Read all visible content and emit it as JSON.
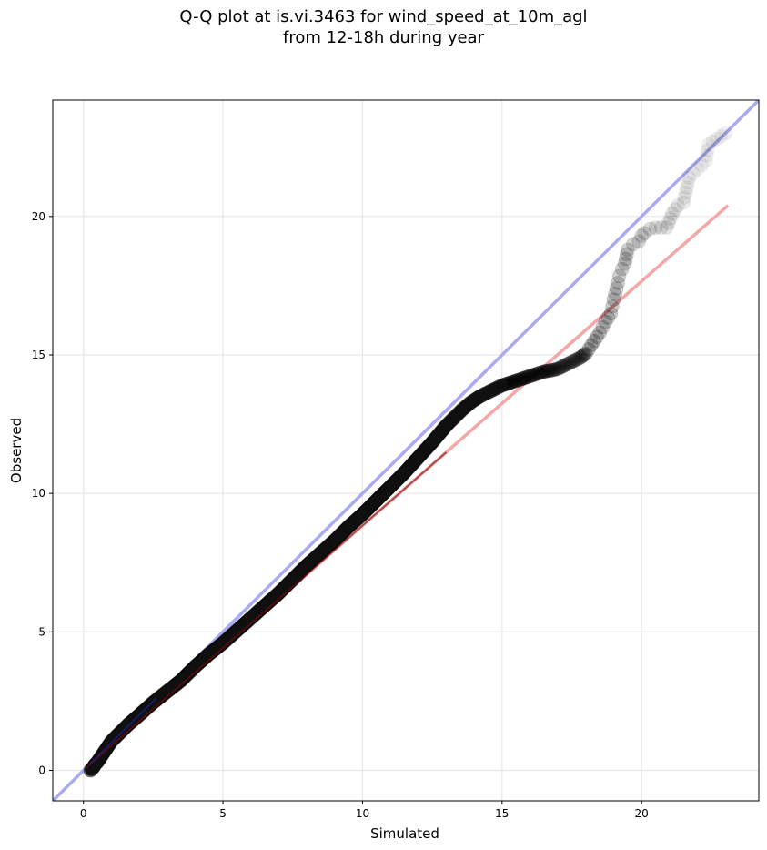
{
  "chart_data": {
    "type": "scatter",
    "title_line1": "Q-Q plot at is.vi.3463 for wind_speed_at_10m_agl",
    "title_line2": "from 12-18h during year",
    "xlabel": "Simulated",
    "ylabel": "Observed",
    "xlim": [
      -1.1,
      24.2
    ],
    "ylim": [
      -1.1,
      24.2
    ],
    "xticks": [
      0,
      5,
      10,
      15,
      20
    ],
    "yticks": [
      0,
      5,
      10,
      15,
      20
    ],
    "grid": true,
    "reference_line": {
      "color": "#aaaaf2",
      "x": [
        -1.1,
        24.2
      ],
      "y": [
        -1.1,
        24.2
      ]
    },
    "fit_line": {
      "color": "#f5a7a7",
      "x": [
        0.1,
        23.1
      ],
      "y": [
        0.1,
        20.4
      ]
    },
    "quantile_points": {
      "color": "#000000",
      "x": [
        0.25,
        0.3,
        0.35,
        0.4,
        0.5,
        0.6,
        0.8,
        1.0,
        1.3,
        1.6,
        2.0,
        2.5,
        3.0,
        3.5,
        4.0,
        4.5,
        5.0,
        5.5,
        6.0,
        6.5,
        7.0,
        7.5,
        8.0,
        8.5,
        9.0,
        9.5,
        10.0,
        10.5,
        11.0,
        11.5,
        12.0,
        12.5,
        13.0,
        13.3,
        13.6,
        13.9,
        14.2,
        14.5,
        14.8,
        15.0,
        15.3,
        15.6,
        15.9,
        16.2,
        16.5,
        16.8,
        17.0,
        17.2,
        17.4,
        17.6,
        17.8,
        18.0,
        18.1,
        18.2,
        18.3,
        18.4,
        18.5,
        18.6,
        18.7,
        18.8,
        18.9,
        18.95,
        19.0,
        19.05,
        19.1,
        19.15,
        19.2,
        19.3,
        19.4,
        19.5,
        19.7,
        19.9,
        20.0,
        20.1,
        20.3,
        20.5,
        20.9,
        21.1,
        21.3,
        21.5,
        21.7,
        22.3,
        22.4,
        23.0
      ],
      "y": [
        0.0,
        0.05,
        0.1,
        0.2,
        0.3,
        0.45,
        0.75,
        1.05,
        1.35,
        1.65,
        2.0,
        2.45,
        2.85,
        3.25,
        3.75,
        4.2,
        4.6,
        5.05,
        5.5,
        5.95,
        6.4,
        6.9,
        7.4,
        7.85,
        8.3,
        8.8,
        9.25,
        9.75,
        10.25,
        10.75,
        11.3,
        11.85,
        12.45,
        12.75,
        13.05,
        13.3,
        13.5,
        13.65,
        13.8,
        13.9,
        14.0,
        14.1,
        14.2,
        14.3,
        14.4,
        14.45,
        14.5,
        14.6,
        14.7,
        14.8,
        14.9,
        15.05,
        15.2,
        15.35,
        15.5,
        15.65,
        15.8,
        16.0,
        16.2,
        16.35,
        16.5,
        16.75,
        17.0,
        17.2,
        17.4,
        17.6,
        17.85,
        18.1,
        18.3,
        18.8,
        19.0,
        19.1,
        19.3,
        19.4,
        19.55,
        19.6,
        19.6,
        20.1,
        20.4,
        20.5,
        21.4,
        22.0,
        22.6,
        23.0
      ]
    }
  }
}
